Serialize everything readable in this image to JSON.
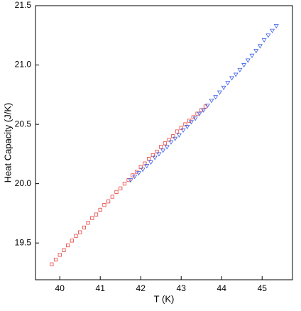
{
  "chart_data": {
    "type": "scatter",
    "xlabel": "T (K)",
    "ylabel": "Heat Capacity (J/K)",
    "xlim": [
      39.4,
      45.75
    ],
    "ylim": [
      19.19,
      21.5
    ],
    "xticks": [
      40,
      41,
      42,
      43,
      44,
      45
    ],
    "yticks": [
      19.5,
      {
        "value": 20.0,
        "label": "20.0"
      },
      20.5,
      {
        "value": 21.0,
        "label": "21.0"
      },
      21.5
    ],
    "series": [
      {
        "color": "#e8403c",
        "marker": "square",
        "x": [
          39.8,
          39.9,
          40.0,
          40.1,
          40.2,
          40.3,
          40.4,
          40.5,
          40.6,
          40.7,
          40.8,
          40.9,
          41.0,
          41.1,
          41.2,
          41.3,
          41.4,
          41.5,
          41.6,
          41.7,
          41.8,
          41.9,
          42.0,
          42.1,
          42.2,
          42.3,
          42.4,
          42.5,
          42.6,
          42.7,
          42.8,
          42.9,
          43.0,
          43.1,
          43.2,
          43.3,
          43.4,
          43.5,
          43.6
        ],
        "values": [
          19.32,
          19.36,
          19.4,
          19.44,
          19.48,
          19.52,
          19.56,
          19.59,
          19.63,
          19.67,
          19.71,
          19.74,
          19.78,
          19.82,
          19.85,
          19.89,
          19.93,
          19.96,
          20.0,
          20.03,
          20.07,
          20.1,
          20.14,
          20.17,
          20.21,
          20.24,
          20.27,
          20.31,
          20.34,
          20.37,
          20.4,
          20.44,
          20.47,
          20.5,
          20.53,
          20.56,
          20.59,
          20.62,
          20.65
        ]
      },
      {
        "color": "#3a5ee8",
        "marker": "triangle-down",
        "x": [
          41.75,
          41.85,
          41.95,
          42.05,
          42.15,
          42.25,
          42.35,
          42.45,
          42.55,
          42.65,
          42.75,
          42.85,
          42.95,
          43.05,
          43.15,
          43.25,
          43.35,
          43.45,
          43.55,
          43.65,
          43.75,
          43.85,
          43.95,
          44.05,
          44.15,
          44.25,
          44.35,
          44.45,
          44.55,
          44.65,
          44.75,
          44.85,
          44.95,
          45.05,
          45.15,
          45.25,
          45.35
        ],
        "values": [
          20.03,
          20.06,
          20.09,
          20.12,
          20.15,
          20.18,
          20.22,
          20.25,
          20.28,
          20.31,
          20.35,
          20.38,
          20.41,
          20.45,
          20.48,
          20.52,
          20.55,
          20.59,
          20.62,
          20.66,
          20.7,
          20.73,
          20.77,
          20.81,
          20.85,
          20.89,
          20.92,
          20.96,
          21.0,
          21.04,
          21.08,
          21.12,
          21.16,
          21.21,
          21.25,
          21.29,
          21.33
        ]
      }
    ]
  }
}
